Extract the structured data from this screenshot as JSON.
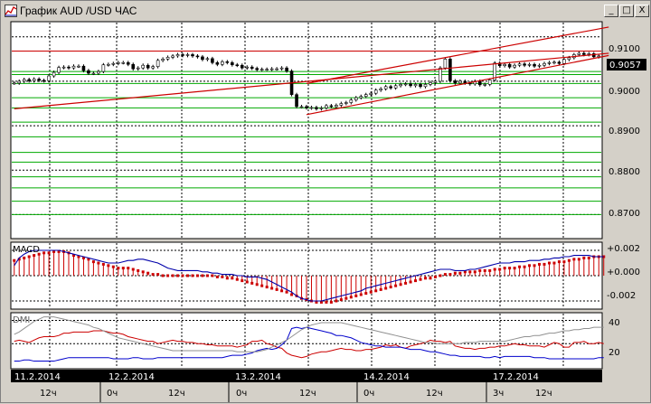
{
  "window": {
    "title": "График AUD /USD  ЧАС",
    "min_glyph": "_",
    "max_glyph": "□",
    "close_glyph": "X"
  },
  "price_panel": {
    "current_price": "0.9057",
    "axis_labels": [
      "0.9100",
      "0.9000",
      "0.8900",
      "0.8800",
      "0.8700"
    ]
  },
  "macd_panel": {
    "label": "MACD",
    "axis_labels": [
      "+0.002",
      "+0.000",
      "-0.002"
    ]
  },
  "dmi_panel": {
    "label": "DMI",
    "axis_labels": [
      "40",
      "20"
    ]
  },
  "time_axis": {
    "dates": [
      "11.2.2014",
      "12.2.2014",
      "13.2.2014",
      "14.2.2014",
      "17.2.2014"
    ],
    "hours": [
      "12ч",
      "0ч",
      "12ч",
      "0ч",
      "12ч",
      "0ч",
      "12ч",
      "3ч",
      "12ч"
    ]
  },
  "colors": {
    "background": "#ffffff",
    "trend_line": "#cc0000",
    "support_line": "#00aa00",
    "macd_hist": "#cc0000",
    "macd_line": "#0000aa",
    "dmi_plus": "#0000cc",
    "dmi_minus": "#cc0000",
    "adx": "#909090"
  },
  "chart_data": [
    {
      "type": "candlestick",
      "title": "График AUD /USD  ЧАС",
      "ylim": [
        0.865,
        0.913
      ],
      "y_ticks": [
        0.91,
        0.9,
        0.89,
        0.88,
        0.87
      ],
      "last_price": 0.9057,
      "close": [
        0.8996,
        0.9,
        0.9004,
        0.9001,
        0.9005,
        0.9002,
        0.9001,
        0.9012,
        0.902,
        0.9031,
        0.9032,
        0.903,
        0.9034,
        0.9034,
        0.9024,
        0.9018,
        0.9018,
        0.9022,
        0.9037,
        0.9038,
        0.904,
        0.9042,
        0.9042,
        0.9038,
        0.9028,
        0.903,
        0.9036,
        0.903,
        0.9033,
        0.9047,
        0.905,
        0.9054,
        0.9057,
        0.906,
        0.9058,
        0.906,
        0.9057,
        0.9055,
        0.9049,
        0.9051,
        0.9042,
        0.9038,
        0.9044,
        0.9042,
        0.9037,
        0.9036,
        0.903,
        0.9032,
        0.9029,
        0.9026,
        0.9027,
        0.9027,
        0.9028,
        0.9028,
        0.903,
        0.9023,
        0.897,
        0.8943,
        0.8943,
        0.894,
        0.8941,
        0.8938,
        0.894,
        0.8945,
        0.8943,
        0.8946,
        0.895,
        0.8952,
        0.8958,
        0.8963,
        0.8966,
        0.897,
        0.8973,
        0.898,
        0.8983,
        0.8988,
        0.8985,
        0.899,
        0.8993,
        0.8994,
        0.899,
        0.8993,
        0.8988,
        0.8993,
        0.8997,
        0.9,
        0.903,
        0.905,
        0.9001,
        0.8996,
        0.9,
        0.8996,
        0.8994,
        0.9,
        0.8992,
        0.8993,
        0.9003,
        0.9041,
        0.9035,
        0.9038,
        0.9032,
        0.9036,
        0.9039,
        0.9036,
        0.9038,
        0.9034,
        0.9036,
        0.904,
        0.9042,
        0.9043,
        0.904,
        0.9049,
        0.9053,
        0.906,
        0.9063,
        0.906,
        0.9062,
        0.9055,
        0.9057
      ],
      "support_levels": [
        0.9068,
        0.9022,
        0.9015,
        0.8995,
        0.8963,
        0.894,
        0.8908,
        0.8875,
        0.884,
        0.8818,
        0.8785,
        0.876,
        0.873,
        0.87
      ],
      "trend_lines": [
        {
          "name": "lower",
          "from": [
            0,
            0.8938
          ],
          "to": [
            119,
            0.9063
          ]
        },
        {
          "name": "channel-upper",
          "from": [
            59,
            0.8995
          ],
          "to": [
            119,
            0.9122
          ]
        },
        {
          "name": "channel-lower",
          "from": [
            59,
            0.8925
          ],
          "to": [
            119,
            0.9058
          ]
        }
      ]
    },
    {
      "type": "bar",
      "label": "MACD",
      "ylim": [
        -0.0025,
        0.0025
      ],
      "y_ticks": [
        0.002,
        0.0,
        -0.002
      ],
      "signal": [
        0.0012,
        0.0013,
        0.0014,
        0.0015,
        0.0016,
        0.0017,
        0.0018,
        0.0018,
        0.0019,
        0.0019,
        0.0019,
        0.0018,
        0.0016,
        0.0015,
        0.0014,
        0.0013,
        0.0011,
        0.001,
        0.0009,
        0.0008,
        0.0007,
        0.0006,
        0.0006,
        0.0006,
        0.0005,
        0.0004,
        0.0003,
        0.0002,
        0.0001,
        0.0001,
        0.0,
        0.0,
        0.0,
        0.0,
        0.0,
        0.0,
        0.0,
        0.0,
        0.0,
        0.0,
        0.0,
        -0.0001,
        -0.0001,
        -0.0002,
        -0.0002,
        -0.0003,
        -0.0004,
        -0.0005,
        -0.0006,
        -0.0007,
        -0.0008,
        -0.0009,
        -0.001,
        -0.0011,
        -0.0012,
        -0.0013,
        -0.0015,
        -0.0016,
        -0.0018,
        -0.0019,
        -0.002,
        -0.0021,
        -0.0021,
        -0.0021,
        -0.0021,
        -0.002,
        -0.0019,
        -0.0018,
        -0.0017,
        -0.0016,
        -0.0015,
        -0.0014,
        -0.0013,
        -0.0012,
        -0.0011,
        -0.001,
        -0.0009,
        -0.0008,
        -0.0007,
        -0.0006,
        -0.0005,
        -0.0004,
        -0.0003,
        -0.0002,
        -0.0002,
        -0.0001,
        0.0,
        0.0001,
        0.0001,
        0.0002,
        0.0002,
        0.0003,
        0.0003,
        0.0003,
        0.0004,
        0.0004,
        0.0004,
        0.0005,
        0.0005,
        0.0006,
        0.0006,
        0.0006,
        0.0007,
        0.0007,
        0.0008,
        0.0008,
        0.0009,
        0.0009,
        0.001,
        0.001,
        0.0011,
        0.0011,
        0.0012,
        0.0013,
        0.0013,
        0.0014,
        0.0014,
        0.0015,
        0.0015,
        0.0015
      ],
      "macd": [
        0.0008,
        0.0014,
        0.0017,
        0.0019,
        0.002,
        0.002,
        0.002,
        0.002,
        0.002,
        0.002,
        0.0019,
        0.0018,
        0.0017,
        0.0016,
        0.0015,
        0.0014,
        0.0013,
        0.0012,
        0.0011,
        0.001,
        0.001,
        0.001,
        0.0011,
        0.0012,
        0.0012,
        0.0013,
        0.0013,
        0.0012,
        0.0011,
        0.001,
        0.0008,
        0.0006,
        0.0005,
        0.0004,
        0.0004,
        0.0004,
        0.0004,
        0.0004,
        0.0003,
        0.0003,
        0.0002,
        0.0002,
        0.0001,
        0.0001,
        0.0001,
        0.0,
        0.0,
        -0.0001,
        -0.0001,
        -0.0001,
        -0.0002,
        -0.0003,
        -0.0005,
        -0.0007,
        -0.0009,
        -0.0011,
        -0.0013,
        -0.0016,
        -0.0018,
        -0.0019,
        -0.002,
        -0.002,
        -0.002,
        -0.0019,
        -0.0018,
        -0.0017,
        -0.0016,
        -0.0015,
        -0.0014,
        -0.0013,
        -0.0012,
        -0.001,
        -0.0009,
        -0.0008,
        -0.0007,
        -0.0006,
        -0.0005,
        -0.0004,
        -0.0003,
        -0.0002,
        -0.0001,
        0.0,
        0.0001,
        0.0002,
        0.0003,
        0.0004,
        0.0005,
        0.0005,
        0.0005,
        0.0004,
        0.0004,
        0.0004,
        0.0005,
        0.0005,
        0.0006,
        0.0007,
        0.0008,
        0.0009,
        0.001,
        0.001,
        0.001,
        0.0011,
        0.0011,
        0.0011,
        0.0012,
        0.0012,
        0.0012,
        0.0013,
        0.0013,
        0.0014,
        0.0014,
        0.0015,
        0.0015,
        0.0016,
        0.0016,
        0.0016,
        0.0016,
        0.0015,
        0.0015,
        0.0015
      ]
    },
    {
      "type": "line",
      "label": "DMI",
      "ylim": [
        0,
        45
      ],
      "y_ticks": [
        40,
        20
      ],
      "series": [
        {
          "values": [
            22,
            23,
            22,
            21,
            23,
            25,
            26,
            26,
            26,
            27,
            29,
            29,
            30,
            30,
            30,
            30,
            31,
            31,
            31,
            30,
            29,
            29,
            28,
            26,
            25,
            24,
            23,
            22,
            22,
            20,
            21,
            22,
            23,
            22,
            22,
            21,
            21,
            20,
            20,
            19,
            19,
            18,
            18,
            18,
            18,
            17,
            18,
            19,
            22,
            22,
            23,
            20,
            19,
            17,
            16,
            12,
            10,
            9,
            8,
            9,
            11,
            12,
            13,
            13,
            14,
            15,
            16,
            15,
            15,
            14,
            14,
            15,
            15,
            16,
            17,
            19,
            18,
            19,
            17,
            16,
            18,
            19,
            20,
            21,
            23,
            22,
            22,
            21,
            22,
            18,
            17,
            16,
            16,
            15,
            16,
            16,
            17,
            17,
            18,
            18,
            19,
            20,
            19,
            19,
            18,
            18,
            18,
            17,
            19,
            21,
            20,
            17,
            17,
            21,
            21,
            22,
            20,
            20,
            21,
            20
          ]
        },
        {
          "values": [
            5,
            5,
            6,
            6,
            5,
            5,
            5,
            5,
            5,
            6,
            7,
            8,
            8,
            8,
            8,
            8,
            8,
            8,
            8,
            8,
            7,
            7,
            7,
            7,
            8,
            8,
            7,
            7,
            7,
            8,
            8,
            8,
            8,
            8,
            8,
            8,
            8,
            8,
            8,
            8,
            8,
            8,
            8,
            9,
            10,
            10,
            10,
            11,
            12,
            14,
            15,
            16,
            15,
            16,
            19,
            23,
            33,
            34,
            33,
            34,
            33,
            32,
            31,
            30,
            29,
            27,
            27,
            26,
            25,
            23,
            21,
            20,
            19,
            18,
            18,
            17,
            17,
            17,
            17,
            16,
            15,
            15,
            15,
            14,
            13,
            13,
            12,
            11,
            10,
            10,
            9,
            9,
            9,
            9,
            9,
            8,
            8,
            9,
            8,
            9,
            9,
            9,
            9,
            9,
            9,
            8,
            8,
            8,
            7,
            7,
            7,
            7,
            7,
            7,
            7,
            7,
            7,
            7,
            8,
            8
          ]
        },
        {
          "values": [
            28,
            30,
            33,
            36,
            39,
            41,
            43,
            43,
            43,
            42,
            41,
            40,
            39,
            38,
            37,
            36,
            34,
            33,
            31,
            29,
            27,
            25,
            24,
            23,
            22,
            21,
            20,
            19,
            18,
            17,
            16,
            15,
            14,
            14,
            14,
            14,
            14,
            14,
            14,
            14,
            14,
            14,
            14,
            14,
            14,
            13,
            13,
            13,
            13,
            13,
            14,
            15,
            17,
            19,
            21,
            23,
            26,
            29,
            32,
            34,
            36,
            37,
            38,
            38,
            38,
            38,
            38,
            37,
            36,
            35,
            34,
            33,
            32,
            31,
            30,
            29,
            28,
            27,
            26,
            25,
            24,
            23,
            22,
            21,
            21,
            20,
            20,
            20,
            20,
            20,
            20,
            21,
            21,
            21,
            22,
            22,
            22,
            22,
            22,
            22,
            23,
            24,
            25,
            26,
            26,
            27,
            27,
            28,
            29,
            29,
            30,
            31,
            31,
            32,
            32,
            33,
            33,
            34,
            34,
            34
          ]
        }
      ]
    }
  ]
}
